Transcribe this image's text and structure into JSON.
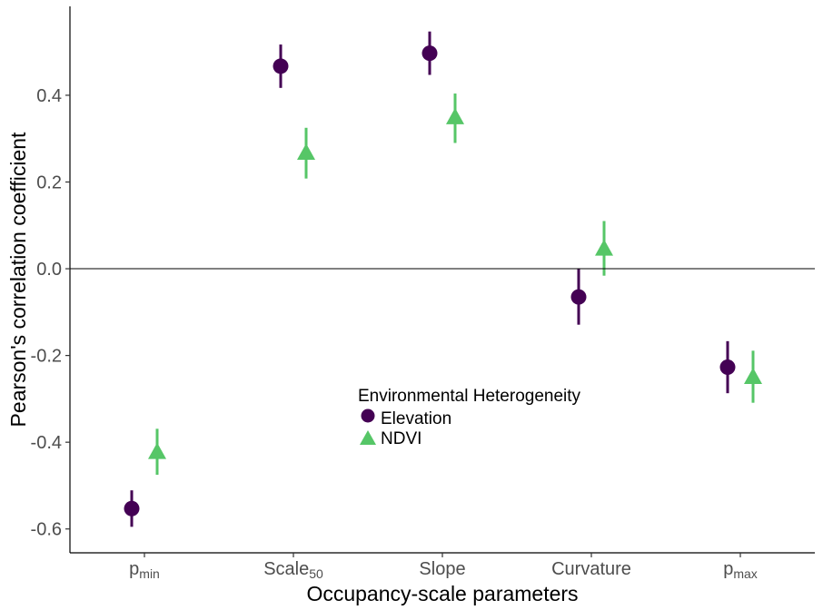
{
  "chart_data": {
    "type": "scatter",
    "title": "",
    "xlabel": "Occupancy-scale parameters",
    "ylabel": "Pearson's correlation coefficient",
    "categories": [
      {
        "base": "p",
        "sub": "min"
      },
      {
        "base": "Scale",
        "sub": "50"
      },
      {
        "base": "Slope",
        "sub": ""
      },
      {
        "base": "Curvature",
        "sub": ""
      },
      {
        "base": "p",
        "sub": "max"
      }
    ],
    "ylim": [
      -0.655,
      0.605
    ],
    "yticks": [
      -0.6,
      -0.4,
      -0.2,
      0.0,
      0.2,
      0.4
    ],
    "ytick_labels": [
      "-0.6",
      "-0.4",
      "-0.2",
      "0.0",
      "0.2",
      "0.4"
    ],
    "reference_line": 0.0,
    "grid": false,
    "legend": {
      "title": "Environmental Heterogeneity",
      "placement": "inside-center"
    },
    "series": [
      {
        "name": "Elevation",
        "marker": "circle",
        "color": "#440154",
        "values": [
          -0.553,
          0.467,
          0.497,
          -0.065,
          -0.227
        ],
        "lower": [
          -0.595,
          0.417,
          0.447,
          -0.129,
          -0.287
        ],
        "upper": [
          -0.511,
          0.517,
          0.547,
          0.001,
          -0.167
        ]
      },
      {
        "name": "NDVI",
        "marker": "triangle",
        "color": "#56C667",
        "values": [
          -0.422,
          0.268,
          0.35,
          0.047,
          -0.249
        ],
        "lower": [
          -0.475,
          0.208,
          0.29,
          -0.016,
          -0.309
        ],
        "upper": [
          -0.369,
          0.325,
          0.404,
          0.11,
          -0.189
        ]
      }
    ]
  }
}
